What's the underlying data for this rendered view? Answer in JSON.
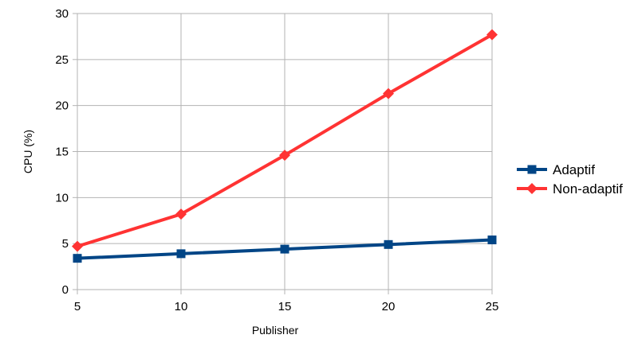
{
  "chart_data": {
    "type": "line",
    "xlabel": "Publisher",
    "ylabel": "CPU (%)",
    "x": [
      5,
      10,
      15,
      20,
      25
    ],
    "xlim": [
      5,
      25
    ],
    "ylim": [
      0,
      30
    ],
    "x_ticks": [
      "5",
      "10",
      "15",
      "20",
      "25"
    ],
    "y_ticks": [
      "0",
      "5",
      "10",
      "15",
      "20",
      "25",
      "30"
    ],
    "grid": true,
    "legend_position": "right",
    "series": [
      {
        "name": "Adaptif",
        "color": "#004586",
        "marker": "square",
        "values": [
          3.4,
          3.9,
          4.4,
          4.9,
          5.4
        ]
      },
      {
        "name": "Non-adaptif",
        "color": "#ff3333",
        "marker": "diamond",
        "values": [
          4.7,
          8.2,
          14.6,
          21.3,
          27.7
        ]
      }
    ]
  }
}
